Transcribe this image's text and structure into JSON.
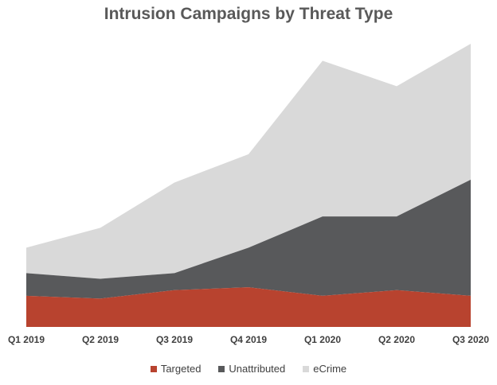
{
  "chart_data": {
    "type": "area",
    "stacked": true,
    "title": "Intrusion Campaigns by Threat Type",
    "xlabel": "",
    "ylabel": "",
    "categories": [
      "Q1 2019",
      "Q2 2019",
      "Q3 2019",
      "Q4 2019",
      "Q1 2020",
      "Q2 2020",
      "Q3 2020"
    ],
    "ylim": [
      0,
      100
    ],
    "grid": false,
    "legend_position": "bottom",
    "series": [
      {
        "name": "Targeted",
        "color": "#b8432f",
        "values": [
          11,
          10,
          13,
          14,
          11,
          13,
          11
        ]
      },
      {
        "name": "Unattributed",
        "color": "#58595b",
        "values": [
          8,
          7,
          6,
          14,
          28,
          26,
          41
        ]
      },
      {
        "name": "eCrime",
        "color": "#d9d9d9",
        "values": [
          9,
          18,
          32,
          33,
          55,
          46,
          48
        ]
      }
    ]
  }
}
